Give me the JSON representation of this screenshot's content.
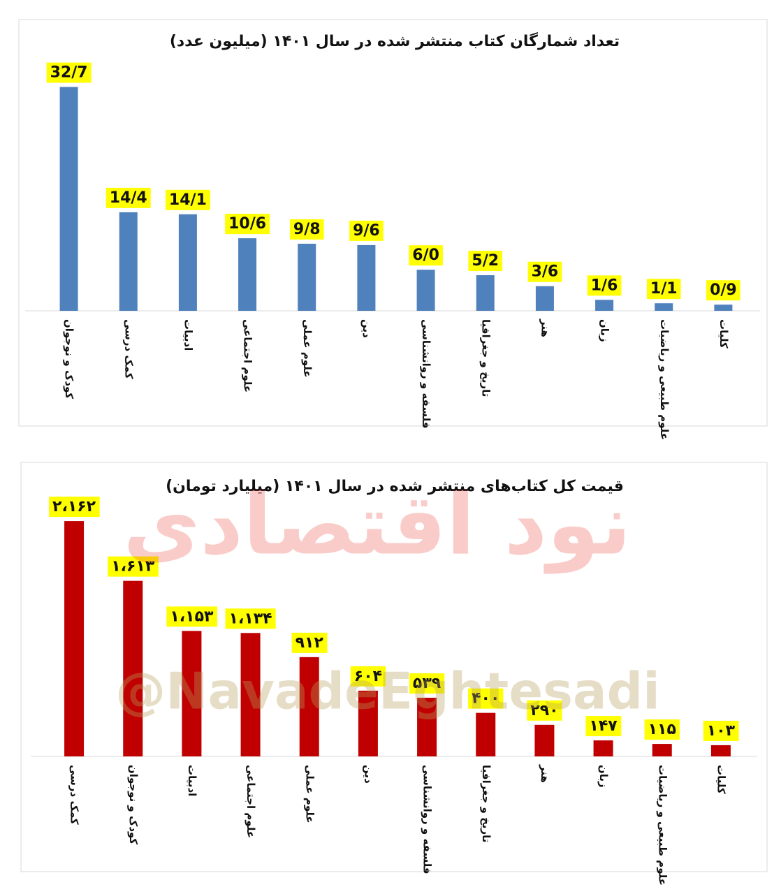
{
  "chart_data": [
    {
      "type": "bar",
      "title": "تعداد شمارگان کتاب منتشر شده در سال ۱۴۰۱ (میلیون عدد)",
      "categories": [
        "کودک و نوجوان",
        "کمک درسی",
        "ادبیات",
        "علوم اجتماعی",
        "علوم عملی",
        "دین",
        "فلسفه و روانشناسی",
        "تاریخ و جغرافیا",
        "هنر",
        "زبان",
        "علوم طبیعی و ریاضیات",
        "کلیات"
      ],
      "values": [
        32.7,
        14.4,
        14.1,
        10.6,
        9.8,
        9.6,
        6.0,
        5.2,
        3.6,
        1.6,
        1.1,
        0.9
      ],
      "value_labels": [
        "32/7",
        "14/4",
        "14/1",
        "10/6",
        "9/8",
        "9/6",
        "6/0",
        "5/2",
        "3/6",
        "1/6",
        "1/1",
        "0/9"
      ],
      "color": "#4f81bd",
      "ylim": [
        0,
        35
      ]
    },
    {
      "type": "bar",
      "title": "قیمت کل کتاب‌های منتشر شده در سال ۱۴۰۱ (میلیارد تومان)",
      "categories": [
        "کمک درسی",
        "کودک و نوجوان",
        "ادبیات",
        "علوم اجتماعی",
        "علوم عملی",
        "دین",
        "فلسفه و روانشناسی",
        "تاریخ و جغرافیا",
        "هنر",
        "زبان",
        "علوم طبیعی و ریاضیات",
        "کلیات"
      ],
      "values": [
        2162,
        1613,
        1153,
        1134,
        912,
        604,
        539,
        400,
        290,
        147,
        115,
        103
      ],
      "value_labels": [
        "۲،۱۶۲",
        "۱،۶۱۳",
        "۱،۱۵۳",
        "۱،۱۳۴",
        "۹۱۲",
        "۶۰۴",
        "۵۳۹",
        "۴۰۰",
        "۲۹۰",
        "۱۴۷",
        "۱۱۵",
        "۱۰۳"
      ],
      "color": "#c00000",
      "ylim": [
        0,
        2400
      ]
    }
  ],
  "watermark": {
    "logo_text": "نود اقتصادی",
    "handle": "@NavadeEghtesadi"
  }
}
